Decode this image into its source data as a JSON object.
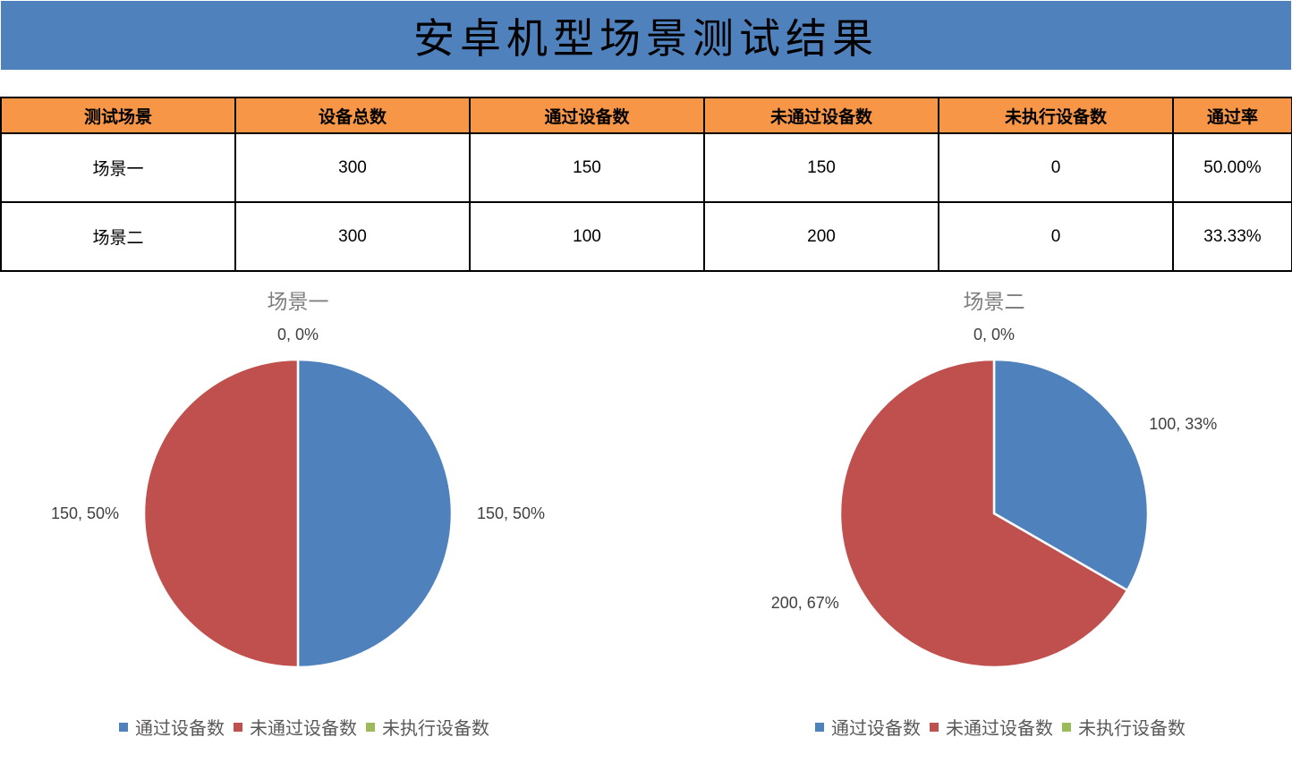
{
  "header": {
    "title": "安卓机型场景测试结果"
  },
  "table": {
    "columns": [
      "测试场景",
      "设备总数",
      "通过设备数",
      "未通过设备数",
      "未执行设备数",
      "通过率"
    ],
    "rows": [
      [
        "场景一",
        "300",
        "150",
        "150",
        "0",
        "50.00%"
      ],
      [
        "场景二",
        "300",
        "100",
        "200",
        "0",
        "33.33%"
      ]
    ]
  },
  "colors": {
    "banner": "#4f81bd",
    "table_header": "#f79646",
    "passed": "#4f81bd",
    "failed": "#c0504d",
    "not_run": "#9bbb59"
  },
  "chart_data": [
    {
      "type": "pie",
      "title": "场景一",
      "categories": [
        "通过设备数",
        "未通过设备数",
        "未执行设备数"
      ],
      "values": [
        150,
        150,
        0
      ],
      "labels": [
        "150, 50%",
        "150, 50%",
        "0, 0%"
      ],
      "colors": [
        "#4f81bd",
        "#c0504d",
        "#9bbb59"
      ],
      "legend": "bottom"
    },
    {
      "type": "pie",
      "title": "场景二",
      "categories": [
        "通过设备数",
        "未通过设备数",
        "未执行设备数"
      ],
      "values": [
        100,
        200,
        0
      ],
      "labels": [
        "100, 33%",
        "200, 67%",
        "0, 0%"
      ],
      "colors": [
        "#4f81bd",
        "#c0504d",
        "#9bbb59"
      ],
      "legend": "bottom"
    }
  ]
}
